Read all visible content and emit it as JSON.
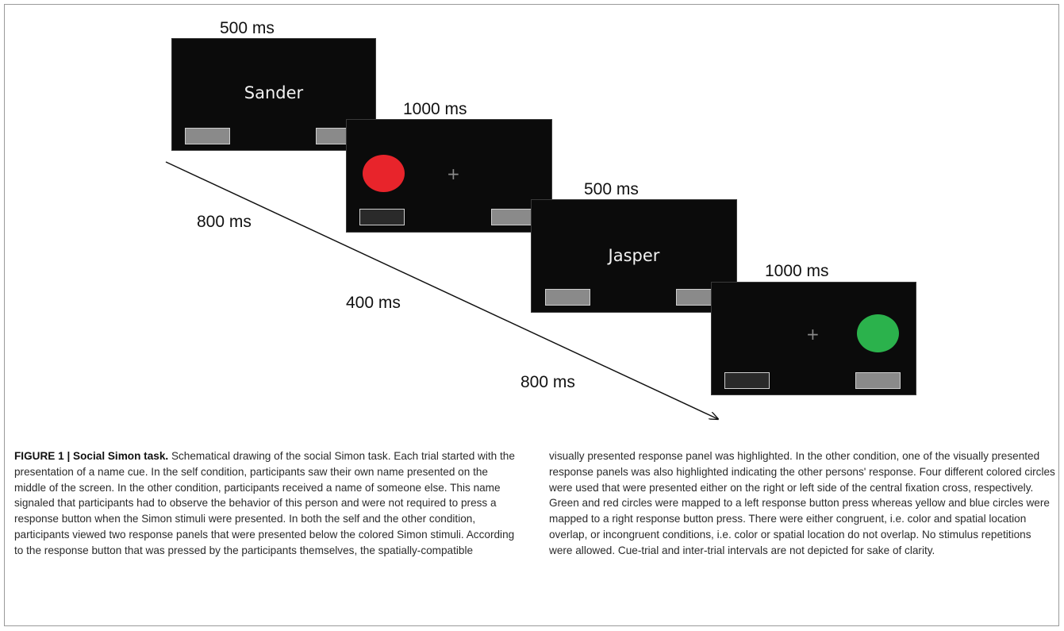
{
  "screens": [
    {
      "duration": "500 ms",
      "content": "Sander"
    },
    {
      "duration": "1000 ms",
      "stimulus_color": "#e8242b"
    },
    {
      "duration": "500 ms",
      "content": "Jasper"
    },
    {
      "duration": "1000 ms",
      "stimulus_color": "#2bb24c"
    }
  ],
  "intervals": [
    "800 ms",
    "400 ms",
    "800 ms"
  ],
  "caption": {
    "figure_label": "FIGURE 1 | Social Simon task.",
    "left_text": " Schematical drawing of the social Simon task. Each trial started with the presentation of a name cue. In the self condition, participants saw their own name presented on the middle of the screen. In the other condition, participants received a name of someone else. This name signaled that participants had to observe the behavior of this person and were not required to press a response button when the Simon stimuli were presented. In both the self and the other condition, participants viewed two response panels that were presented below the colored Simon stimuli. According to the response button that was pressed by the participants themselves, the spatially-compatible",
    "right_text": "visually presented response panel was highlighted. In the other condition, one of the visually presented response panels was also highlighted indicating the other persons' response. Four different colored circles were used that were presented either on the right or left side of the central fixation cross, respectively. Green and red circles were mapped to a left response button press whereas yellow and blue circles were mapped to a right response button press. There were either congruent, i.e. color and spatial location overlap, or incongruent conditions, i.e. color or spatial location do not overlap. No stimulus repetitions were allowed. Cue-trial and inter-trial intervals are not depicted for sake of clarity."
  },
  "colors": {
    "screen_bg": "#0b0b0b",
    "panel_lit": "#8a8a8a",
    "panel_dark": "#2a2a2a"
  }
}
